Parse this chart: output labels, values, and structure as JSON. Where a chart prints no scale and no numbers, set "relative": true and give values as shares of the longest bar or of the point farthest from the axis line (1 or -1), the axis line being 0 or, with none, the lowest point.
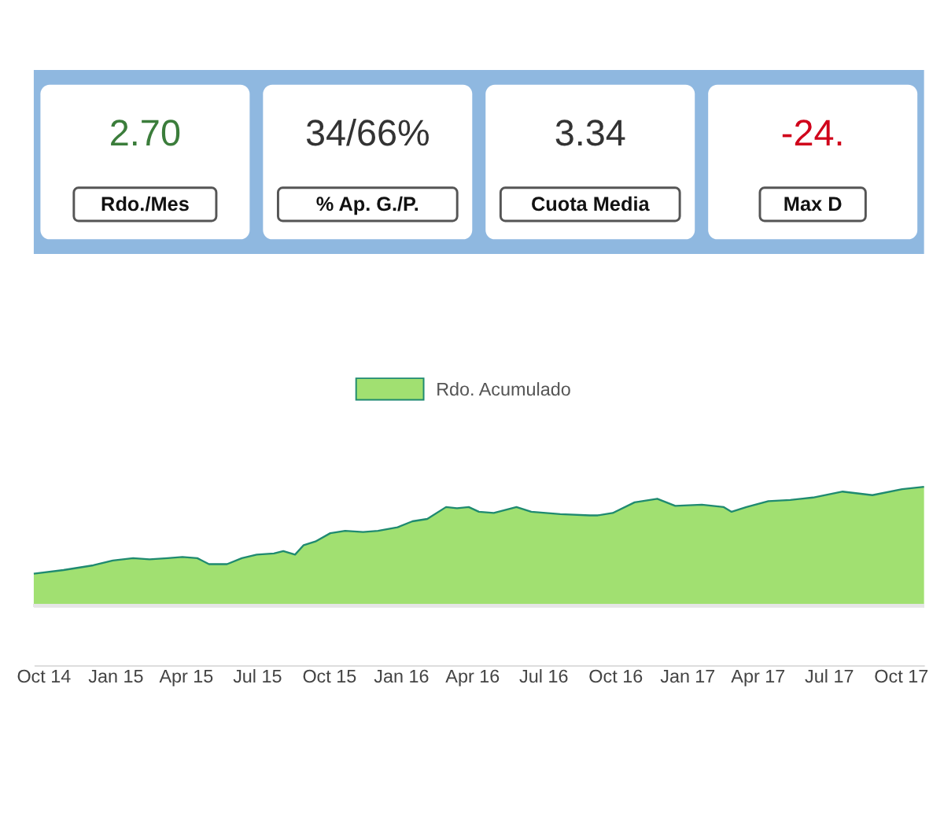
{
  "chart_data": [
    {
      "type": "other",
      "categories": [
        "2.70",
        "34/66%",
        "3.34",
        "-24."
      ],
      "annotations": [
        "Rdo./Mes",
        "% Ap. G./P.",
        "Cuota Media",
        "Max D"
      ]
    },
    {
      "type": "area",
      "relative": true,
      "legend": "top",
      "x": [
        "2014-09-19",
        "2014-10-27",
        "2014-12-04",
        "2014-12-29",
        "2015-01-24",
        "2015-02-14",
        "2015-03-09",
        "2015-03-28",
        "2015-04-16",
        "2015-05-01",
        "2015-05-24",
        "2015-06-12",
        "2015-07-01",
        "2015-07-23",
        "2015-08-04",
        "2015-08-19",
        "2015-08-30",
        "2015-09-14",
        "2015-10-03",
        "2015-10-22",
        "2015-11-14",
        "2015-12-03",
        "2015-12-28",
        "2016-01-16",
        "2016-02-04",
        "2016-02-28",
        "2016-03-13",
        "2016-03-28",
        "2016-04-10",
        "2016-04-29",
        "2016-05-28",
        "2016-06-16",
        "2016-07-23",
        "2016-08-30",
        "2016-09-09",
        "2016-09-28",
        "2016-10-26",
        "2016-11-24",
        "2016-12-17",
        "2017-01-20",
        "2017-02-17",
        "2017-02-27",
        "2017-03-18",
        "2017-04-15",
        "2017-05-13",
        "2017-06-11",
        "2017-07-19",
        "2017-08-26",
        "2017-10-03",
        "2017-10-31"
      ],
      "xlim": [
        "2014-09-19",
        "2017-10-31"
      ],
      "xticks": [
        {
          "value": "2014-10-01",
          "label": "Oct 14"
        },
        {
          "value": "2015-01-01",
          "label": "Jan 15"
        },
        {
          "value": "2015-04-01",
          "label": "Apr 15"
        },
        {
          "value": "2015-07-01",
          "label": "Jul 15"
        },
        {
          "value": "2015-10-01",
          "label": "Oct 15"
        },
        {
          "value": "2016-01-01",
          "label": "Jan 16"
        },
        {
          "value": "2016-04-01",
          "label": "Apr 16"
        },
        {
          "value": "2016-07-01",
          "label": "Jul 16"
        },
        {
          "value": "2016-10-01",
          "label": "Oct 16"
        },
        {
          "value": "2017-01-01",
          "label": "Jan 17"
        },
        {
          "value": "2017-04-01",
          "label": "Apr 17"
        },
        {
          "value": "2017-07-01",
          "label": "Jul 17"
        },
        {
          "value": "2017-10-01",
          "label": "Oct 17"
        }
      ],
      "series": [
        {
          "name": "Rdo. Acumulado",
          "color": "#a1e071",
          "values": [
            0.27,
            0.3,
            0.34,
            0.38,
            0.4,
            0.39,
            0.4,
            0.41,
            0.4,
            0.35,
            0.35,
            0.4,
            0.43,
            0.44,
            0.46,
            0.43,
            0.51,
            0.54,
            0.61,
            0.63,
            0.62,
            0.63,
            0.66,
            0.71,
            0.73,
            0.83,
            0.82,
            0.83,
            0.79,
            0.78,
            0.83,
            0.79,
            0.77,
            0.76,
            0.76,
            0.78,
            0.87,
            0.9,
            0.84,
            0.85,
            0.83,
            0.79,
            0.83,
            0.88,
            0.89,
            0.91,
            0.96,
            0.93,
            0.98,
            1.0
          ]
        }
      ]
    }
  ]
}
